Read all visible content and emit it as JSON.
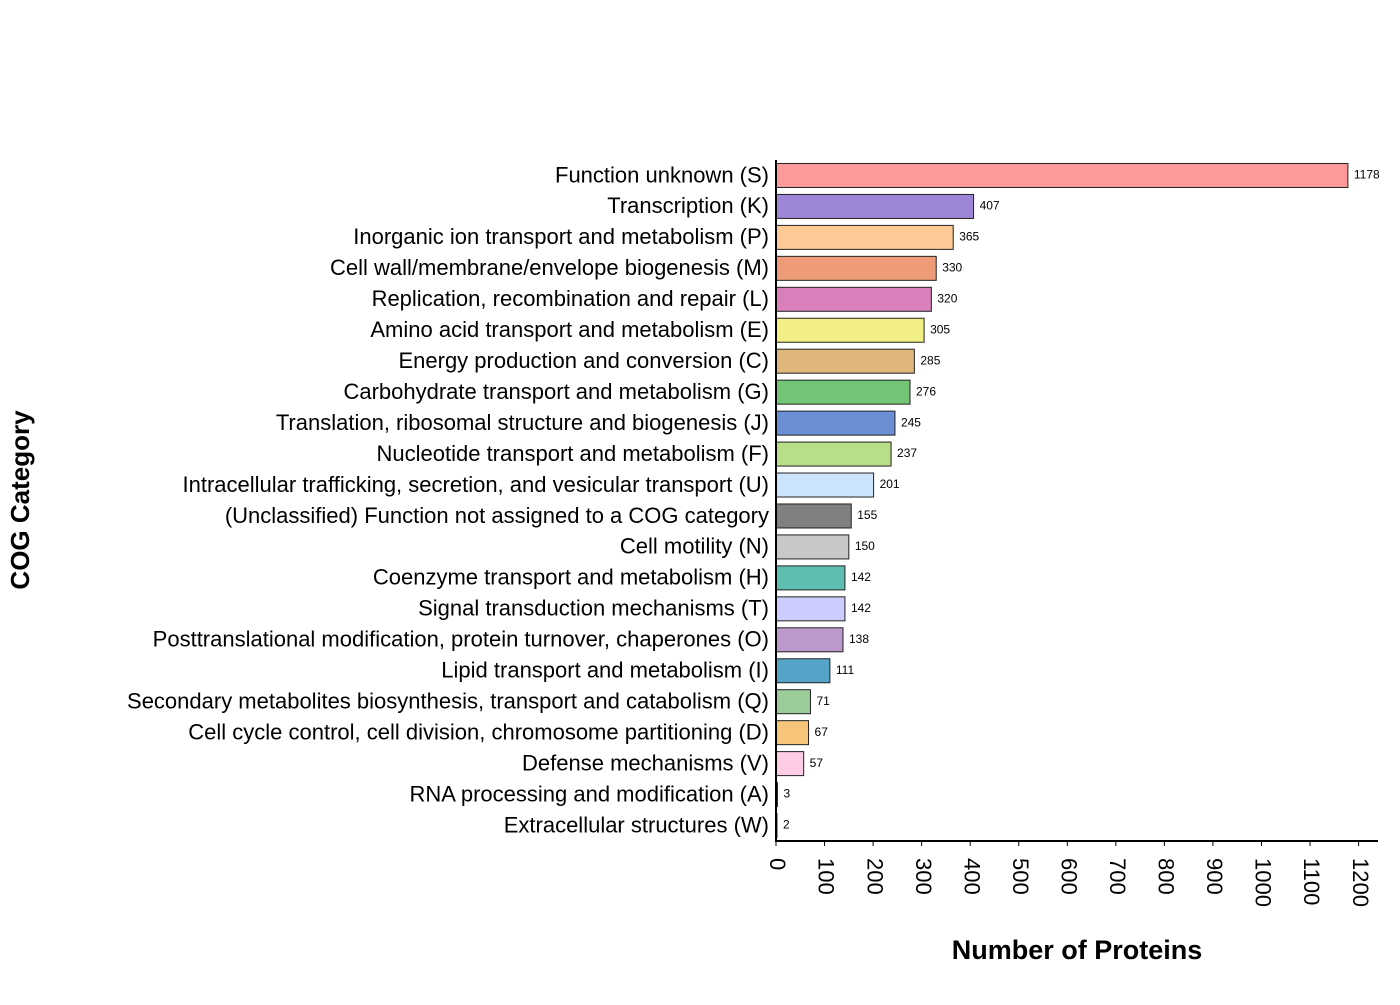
{
  "chart_data": {
    "type": "bar",
    "orientation": "horizontal",
    "x_label": "Number of Proteins",
    "y_label": "COG Category",
    "categories": [
      "Function unknown (S)",
      "Transcription (K)",
      "Inorganic ion transport and metabolism (P)",
      "Cell wall/membrane/envelope biogenesis (M)",
      "Replication, recombination and repair (L)",
      "Amino acid transport and metabolism (E)",
      "Energy production and conversion (C)",
      "Carbohydrate transport and metabolism (G)",
      "Translation, ribosomal structure and biogenesis (J)",
      "Nucleotide transport and metabolism (F)",
      "Intracellular trafficking, secretion, and vesicular transport (U)",
      "(Unclassified) Function not assigned to a COG category",
      "Cell motility (N)",
      "Coenzyme transport and metabolism (H)",
      "Signal transduction mechanisms (T)",
      "Posttranslational modification, protein turnover, chaperones (O)",
      "Lipid transport and metabolism (I)",
      "Secondary metabolites biosynthesis, transport and catabolism (Q)",
      "Cell cycle control, cell division, chromosome partitioning (D)",
      "Defense mechanisms (V)",
      "RNA processing and modification (A)",
      "Extracellular structures (W)"
    ],
    "values": [
      1178,
      407,
      365,
      330,
      320,
      305,
      285,
      276,
      245,
      237,
      201,
      155,
      150,
      142,
      142,
      138,
      111,
      71,
      67,
      57,
      3,
      2
    ],
    "colors": [
      "#fb9a99",
      "#9e86d6",
      "#fdca96",
      "#ee9c78",
      "#d97fba",
      "#f2ef85",
      "#e0b77b",
      "#73c475",
      "#6a8fd4",
      "#b8df87",
      "#cce5fd",
      "#808080",
      "#c8c8c8",
      "#5ebfb0",
      "#ccccff",
      "#bb99cc",
      "#55a3c6",
      "#99cc99",
      "#f7c57a",
      "#ffcce6",
      "#333333",
      "#333333"
    ],
    "xlim": [
      0,
      1240
    ],
    "xticks": [
      0,
      100,
      200,
      300,
      400,
      500,
      600,
      700,
      800,
      900,
      1000,
      1100,
      1200
    ]
  }
}
